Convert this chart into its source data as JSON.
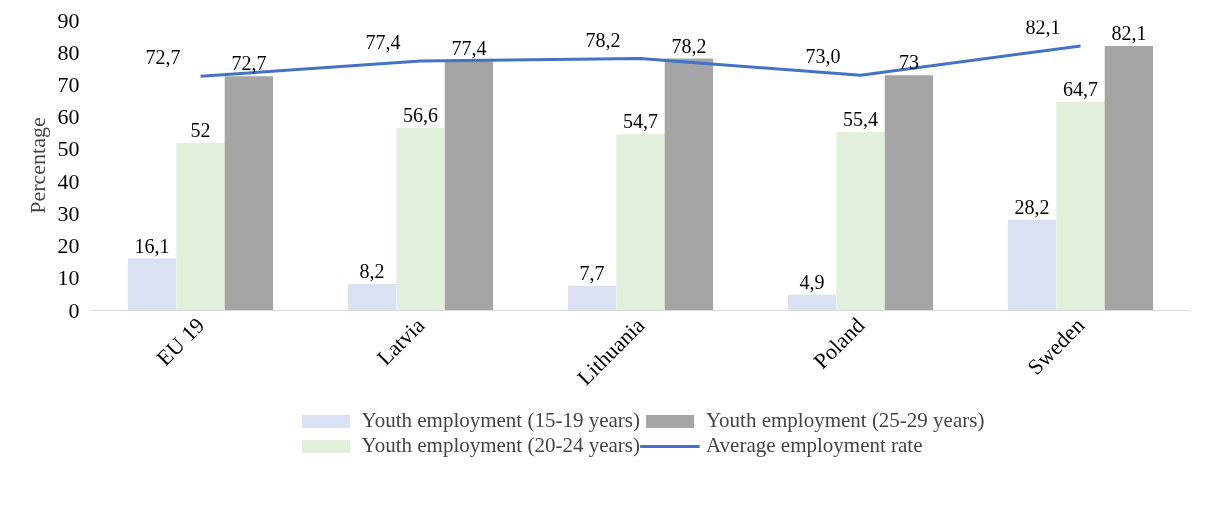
{
  "chart_data": {
    "type": "bar",
    "ylabel": "Percentage",
    "categories": [
      "EU 19",
      "Latvia",
      "Lithuania",
      "Poland",
      "Sweden"
    ],
    "series": [
      {
        "name": "Youth employment (15-19 years)",
        "color": "#d9e1f2",
        "values": [
          16.1,
          8.2,
          7.7,
          4.9,
          28.2
        ],
        "value_labels": [
          "16,1",
          "8,2",
          "7,7",
          "4,9",
          "28,2"
        ]
      },
      {
        "name": "Youth employment (20-24 years)",
        "color": "#e2efda",
        "values": [
          52,
          56.6,
          54.7,
          55.4,
          64.7
        ],
        "value_labels": [
          "52",
          "56,6",
          "54,7",
          "55,4",
          "64,7"
        ]
      },
      {
        "name": "Youth employment (25-29 years)",
        "color": "#a5a5a5",
        "values": [
          72.7,
          77.4,
          78.2,
          73,
          82.1
        ],
        "value_labels": [
          "72,7",
          "77,4",
          "78,2",
          "73",
          "82,1"
        ]
      },
      {
        "name": "Average employment rate",
        "type": "line",
        "color": "#4472c4",
        "values": [
          72.7,
          77.4,
          78.2,
          73.0,
          82.1
        ],
        "value_labels": [
          "72,7",
          "77,4",
          "78,2",
          "73,0",
          "82,1"
        ]
      }
    ],
    "ylim": [
      0,
      90
    ],
    "yticks": [
      0,
      10,
      20,
      30,
      40,
      50,
      60,
      70,
      80,
      90
    ],
    "grid": false,
    "legend": "bottom",
    "marker": "none",
    "line_style": "solid"
  }
}
